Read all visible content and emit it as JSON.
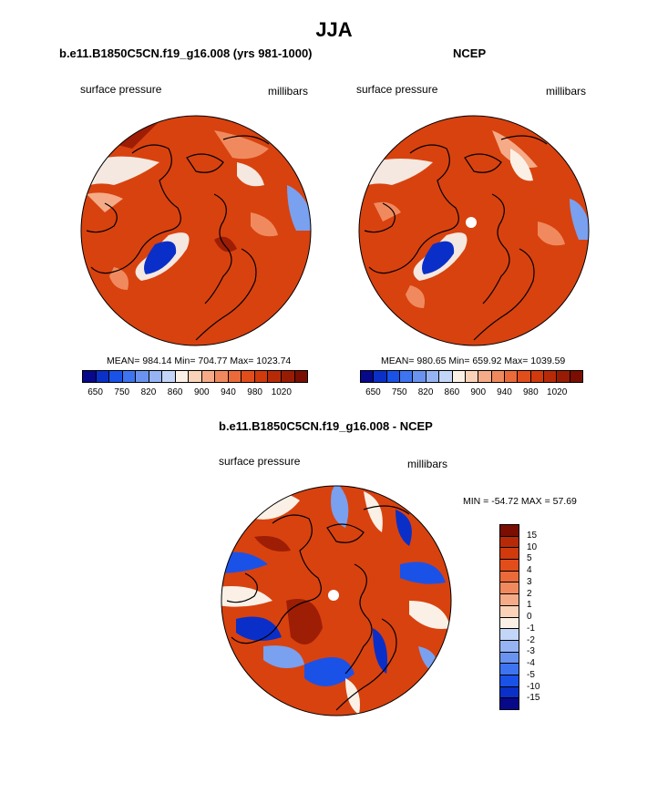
{
  "title": "JJA",
  "panels": [
    {
      "title": "b.e11.B1850C5CN.f19_g16.008 (yrs 981-1000)",
      "left_label": "surface pressure",
      "right_label": "millibars",
      "stats": "MEAN= 984.14  Min= 704.77  Max= 1023.74"
    },
    {
      "title": "NCEP",
      "left_label": "surface pressure",
      "right_label": "millibars",
      "stats": "MEAN= 980.65  Min= 659.92  Max= 1039.59"
    },
    {
      "title": "b.e11.B1850C5CN.f19_g16.008 - NCEP",
      "left_label": "surface pressure",
      "right_label": "millibars",
      "stats": "MIN = -54.72 MAX =  57.69"
    }
  ],
  "abs_colorbar": {
    "colors": [
      "#08088a",
      "#0b30c8",
      "#1a52e8",
      "#3e74ef",
      "#6a93f0",
      "#96b4f3",
      "#c4d6f7",
      "#faf0e6",
      "#fad2b8",
      "#f5ab87",
      "#f08a5e",
      "#ea6a3a",
      "#e24d1c",
      "#d03a0c",
      "#b72a08",
      "#981c04",
      "#7a0e02"
    ],
    "tick_labels": [
      "650",
      "750",
      "820",
      "860",
      "900",
      "940",
      "980",
      "1020"
    ]
  },
  "diff_colorbar": {
    "colors": [
      "#7a0e02",
      "#b72a08",
      "#d03a0c",
      "#e24d1c",
      "#ea6a3a",
      "#f08a5e",
      "#f5ab87",
      "#fad2b8",
      "#faf0e6",
      "#c4d6f7",
      "#96b4f3",
      "#6a93f0",
      "#3e74ef",
      "#1a52e8",
      "#0b30c8",
      "#08088a"
    ],
    "tick_labels": [
      "15",
      "10",
      "5",
      "4",
      "3",
      "2",
      "1",
      "0",
      "-1",
      "-2",
      "-3",
      "-4",
      "-5",
      "-10",
      "-15"
    ]
  },
  "map_colors": {
    "ocean_red": "#d8420f",
    "dark_red": "#9e1d05",
    "deep_blue": "#0a2fc9",
    "light_blue": "#7aa0f0",
    "pale": "#f4e8e0",
    "coast": "#000000"
  }
}
